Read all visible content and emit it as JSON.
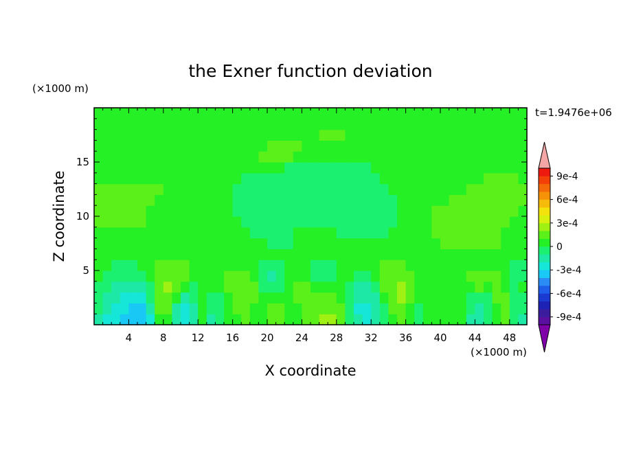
{
  "chart_data": {
    "type": "heatmap",
    "title": "the Exner function deviation",
    "xlabel": "X coordinate",
    "ylabel": "Z coordinate",
    "x_unit": "(×1000 m)",
    "y_unit": "(×1000 m)",
    "time_label": "t=1.9476e+06",
    "xlim": [
      0,
      50
    ],
    "ylim": [
      0,
      20
    ],
    "x_ticks": [
      4,
      8,
      12,
      16,
      20,
      24,
      28,
      32,
      36,
      40,
      44,
      48
    ],
    "y_ticks": [
      5,
      10,
      15
    ],
    "colorbar": {
      "levels": [
        -0.0011,
        -0.001,
        -0.0009,
        -0.0008,
        -0.0007,
        -0.0006,
        -0.0005,
        -0.0004,
        -0.0003,
        -0.0002,
        -0.0001,
        0,
        0.0001,
        0.0002,
        0.0003,
        0.0004,
        0.0005,
        0.0006,
        0.0007,
        0.0008,
        0.0009,
        0.001
      ],
      "tick_values": [
        -0.0009,
        -0.0006,
        -0.0003,
        0,
        0.0003,
        0.0006,
        0.0009
      ],
      "tick_labels": [
        "-9e-4",
        "-6e-4",
        "-3e-4",
        "0",
        "3e-4",
        "6e-4",
        "9e-4"
      ],
      "colors": [
        "#7f00a8",
        "#5a0fa0",
        "#3a1c9c",
        "#1e22b4",
        "#1a3ad2",
        "#1f5ee8",
        "#2a8cf4",
        "#19c8f4",
        "#16e6d8",
        "#1ee8a6",
        "#1cf070",
        "#25f025",
        "#5cf01a",
        "#a0f014",
        "#d8f00e",
        "#f4e20c",
        "#f5ba0a",
        "#f59208",
        "#f56a08",
        "#f24008",
        "#ee1a10",
        "#f4a6a6"
      ]
    },
    "grid": false,
    "legend": "colorbar-right",
    "field": {
      "nx": 50,
      "nz": 20,
      "x_centers": [
        0.5,
        1.5,
        2.5,
        3.5,
        4.5,
        5.5,
        6.5,
        7.5,
        8.5,
        9.5,
        10.5,
        11.5,
        12.5,
        13.5,
        14.5,
        15.5,
        16.5,
        17.5,
        18.5,
        19.5,
        20.5,
        21.5,
        22.5,
        23.5,
        24.5,
        25.5,
        26.5,
        27.5,
        28.5,
        29.5,
        30.5,
        31.5,
        32.5,
        33.5,
        34.5,
        35.5,
        36.5,
        37.5,
        38.5,
        39.5,
        40.5,
        41.5,
        42.5,
        43.5,
        44.5,
        45.5,
        46.5,
        47.5,
        48.5,
        49.5
      ],
      "z_centers": [
        0.5,
        1.5,
        2.5,
        3.5,
        4.5,
        5.5,
        6.5,
        7.5,
        8.5,
        9.5,
        10.5,
        11.5,
        12.5,
        13.5,
        14.5,
        15.5,
        16.5,
        17.5,
        18.5,
        19.5
      ],
      "values_by_z": [
        [
          -0.00015,
          -0.00025,
          -0.0003,
          -0.00035,
          -0.0004,
          -0.0004,
          -0.00025,
          5e-05,
          5e-05,
          -0.0002,
          -0.0003,
          -0.0002,
          5e-05,
          -0.00015,
          -0.0001,
          0,
          5e-05,
          0.0001,
          5e-05,
          5e-05,
          0.0001,
          0.0001,
          5e-05,
          5e-05,
          0.0001,
          0.00015,
          0.0002,
          0.0002,
          0.00015,
          -0.0001,
          -0.0002,
          -0.00025,
          -0.0002,
          -0.0001,
          5e-05,
          0.0001,
          5e-05,
          -5e-05,
          0,
          5e-05,
          5e-05,
          5e-05,
          5e-05,
          -0.00015,
          -0.0002,
          -0.0001,
          5e-05,
          0.0001,
          -0.0001,
          -0.00015
        ],
        [
          -0.0001,
          -0.0002,
          -0.00025,
          -0.0003,
          -0.00035,
          -0.00035,
          -0.0002,
          0.0001,
          0.0001,
          -0.00015,
          -0.00025,
          -0.00015,
          5e-05,
          -0.0001,
          -0.0001,
          0,
          0.0001,
          0.0001,
          5e-05,
          5e-05,
          0.0001,
          0.0001,
          5e-05,
          5e-05,
          0.0001,
          0.00015,
          0.00015,
          0.00015,
          0.0001,
          -0.0001,
          -0.00025,
          -0.00025,
          -0.0002,
          -5e-05,
          0.0001,
          0.00015,
          5e-05,
          -5e-05,
          0,
          5e-05,
          5e-05,
          5e-05,
          5e-05,
          -0.0001,
          -0.00015,
          -0.0001,
          5e-05,
          0.0001,
          -0.0001,
          -0.0001
        ],
        [
          -5e-05,
          -0.00015,
          -0.0002,
          -0.00025,
          -0.0003,
          -0.00025,
          -0.0001,
          0.00015,
          0.00015,
          5e-05,
          -0.00015,
          -0.0001,
          5e-05,
          -5e-05,
          -5e-05,
          5e-05,
          0.00015,
          0.00015,
          0.0001,
          5e-05,
          5e-05,
          5e-05,
          5e-05,
          0.0001,
          0.0001,
          0.0001,
          0.0001,
          0.0001,
          5e-05,
          -5e-05,
          -0.0002,
          -0.0002,
          -0.00015,
          5e-05,
          0.00015,
          0.0002,
          0.0001,
          0,
          0,
          5e-05,
          5e-05,
          5e-05,
          5e-05,
          -5e-05,
          -0.0001,
          -5e-05,
          0.0001,
          0.0001,
          -5e-05,
          -5e-05
        ],
        [
          -5e-05,
          -0.0001,
          -0.00015,
          -0.0002,
          -0.0002,
          -0.00015,
          -5e-05,
          0.00015,
          0.0002,
          0.00015,
          5e-05,
          -5e-05,
          5e-05,
          5e-05,
          5e-05,
          0.0001,
          0.00015,
          0.00015,
          0.0001,
          -5e-05,
          -0.0001,
          -5e-05,
          5e-05,
          0.0001,
          0.0001,
          5e-05,
          5e-05,
          5e-05,
          5e-05,
          -5e-05,
          -0.00015,
          -0.00015,
          -0.0001,
          0.0001,
          0.00015,
          0.0002,
          0.0001,
          0,
          0,
          5e-05,
          5e-05,
          5e-05,
          5e-05,
          5e-05,
          0.0001,
          5e-05,
          0.0001,
          5e-05,
          -5e-05,
          0
        ],
        [
          0,
          -5e-05,
          -0.0001,
          -0.0001,
          -0.0001,
          -5e-05,
          5e-05,
          0.0001,
          0.00015,
          0.00015,
          0.0001,
          5e-05,
          5e-05,
          5e-05,
          5e-05,
          0.0001,
          0.0001,
          0.0001,
          5e-05,
          -0.0001,
          -0.00015,
          -0.0001,
          0,
          5e-05,
          5e-05,
          -5e-05,
          -0.0001,
          -5e-05,
          5e-05,
          5e-05,
          -5e-05,
          -5e-05,
          0,
          0.0001,
          0.00015,
          0.00015,
          0.0001,
          0,
          0,
          5e-05,
          5e-05,
          5e-05,
          5e-05,
          0.0001,
          0.0001,
          0.0001,
          0.0001,
          5e-05,
          -0.0001,
          -5e-05
        ],
        [
          5e-05,
          0,
          -5e-05,
          -5e-05,
          -5e-05,
          0,
          5e-05,
          0.0001,
          0.0001,
          0.0001,
          0.0001,
          5e-05,
          5e-05,
          5e-05,
          5e-05,
          5e-05,
          5e-05,
          5e-05,
          0,
          -5e-05,
          -5e-05,
          -5e-05,
          0,
          5e-05,
          0,
          -0.0001,
          -0.0001,
          -5e-05,
          5e-05,
          5e-05,
          0,
          0,
          5e-05,
          0.0001,
          0.0001,
          0.0001,
          5e-05,
          0,
          0,
          5e-05,
          5e-05,
          5e-05,
          5e-05,
          5e-05,
          5e-05,
          5e-05,
          5e-05,
          0,
          -5e-05,
          -5e-05
        ],
        [
          5e-05,
          5e-05,
          5e-05,
          5e-05,
          5e-05,
          5e-05,
          5e-05,
          5e-05,
          5e-05,
          5e-05,
          5e-05,
          5e-05,
          5e-05,
          5e-05,
          5e-05,
          5e-05,
          5e-05,
          5e-05,
          5e-05,
          5e-05,
          5e-05,
          5e-05,
          5e-05,
          5e-05,
          5e-05,
          5e-05,
          5e-05,
          5e-05,
          5e-05,
          5e-05,
          5e-05,
          5e-05,
          5e-05,
          5e-05,
          5e-05,
          5e-05,
          5e-05,
          5e-05,
          5e-05,
          5e-05,
          5e-05,
          5e-05,
          5e-05,
          5e-05,
          5e-05,
          5e-05,
          5e-05,
          5e-05,
          5e-05,
          5e-05
        ],
        [
          5e-05,
          5e-05,
          5e-05,
          5e-05,
          5e-05,
          5e-05,
          5e-05,
          5e-05,
          5e-05,
          5e-05,
          5e-05,
          5e-05,
          5e-05,
          5e-05,
          5e-05,
          5e-05,
          5e-05,
          5e-05,
          0,
          0,
          -5e-05,
          -5e-05,
          -5e-05,
          5e-05,
          5e-05,
          5e-05,
          5e-05,
          0,
          0,
          0,
          0,
          0,
          0,
          0,
          0,
          0,
          0,
          0,
          5e-05,
          5e-05,
          0.0001,
          0.0001,
          0.0001,
          0.0001,
          0.0001,
          0.0001,
          0.0001,
          5e-05,
          5e-05,
          5e-05
        ],
        [
          5e-05,
          5e-05,
          5e-05,
          5e-05,
          5e-05,
          5e-05,
          5e-05,
          5e-05,
          5e-05,
          5e-05,
          5e-05,
          5e-05,
          5e-05,
          5e-05,
          5e-05,
          5e-05,
          5e-05,
          0,
          -5e-05,
          -5e-05,
          -5e-05,
          -5e-05,
          -5e-05,
          5e-05,
          5e-05,
          5e-05,
          5e-05,
          0,
          -5e-05,
          -5e-05,
          -5e-05,
          -5e-05,
          -5e-05,
          -5e-05,
          0,
          0,
          0,
          0,
          5e-05,
          0.0001,
          0.0001,
          0.0001,
          0.0001,
          0.0001,
          0.0001,
          0.0001,
          0.0001,
          5e-05,
          5e-05,
          5e-05
        ],
        [
          0.0001,
          0.0001,
          0.0001,
          0.0001,
          0.0001,
          0.0001,
          5e-05,
          5e-05,
          5e-05,
          5e-05,
          5e-05,
          5e-05,
          5e-05,
          5e-05,
          0,
          0,
          0,
          -5e-05,
          -5e-05,
          -5e-05,
          -5e-05,
          -5e-05,
          -5e-05,
          -5e-05,
          -5e-05,
          -5e-05,
          -5e-05,
          -5e-05,
          -5e-05,
          -5e-05,
          -5e-05,
          -5e-05,
          -5e-05,
          -5e-05,
          -5e-05,
          0,
          0,
          0,
          5e-05,
          0.0001,
          0.0001,
          0.0001,
          0.0001,
          0.0001,
          0.0001,
          0.0001,
          0.0001,
          0.0001,
          5e-05,
          5e-05
        ],
        [
          0.0001,
          0.0001,
          0.0001,
          0.0001,
          0.0001,
          0.0001,
          5e-05,
          5e-05,
          5e-05,
          5e-05,
          5e-05,
          5e-05,
          5e-05,
          5e-05,
          0,
          0,
          -5e-05,
          -5e-05,
          -5e-05,
          -5e-05,
          -5e-05,
          -5e-05,
          -5e-05,
          -5e-05,
          -5e-05,
          -5e-05,
          -5e-05,
          -5e-05,
          -5e-05,
          -5e-05,
          -5e-05,
          -5e-05,
          -5e-05,
          -5e-05,
          -5e-05,
          0,
          0,
          0,
          5e-05,
          0.0001,
          0.0001,
          0.0001,
          0.0001,
          0.0001,
          0.0001,
          0.0001,
          0.0001,
          0.0001,
          0.0001,
          5e-05
        ],
        [
          0.0001,
          0.0001,
          0.0001,
          0.0001,
          0.0001,
          0.0001,
          0.0001,
          5e-05,
          5e-05,
          5e-05,
          5e-05,
          5e-05,
          5e-05,
          5e-05,
          0,
          0,
          -5e-05,
          -5e-05,
          -5e-05,
          -5e-05,
          -5e-05,
          -5e-05,
          -5e-05,
          -5e-05,
          -5e-05,
          -5e-05,
          -5e-05,
          -5e-05,
          -5e-05,
          -5e-05,
          -5e-05,
          -5e-05,
          -5e-05,
          -5e-05,
          -5e-05,
          0,
          0,
          0,
          0,
          5e-05,
          5e-05,
          0.0001,
          0.0001,
          0.0001,
          0.0001,
          0.0001,
          0.0001,
          0.0001,
          0.0001,
          0.0001
        ],
        [
          0.0001,
          0.0001,
          0.0001,
          0.0001,
          0.0001,
          0.0001,
          0.0001,
          0.0001,
          5e-05,
          5e-05,
          5e-05,
          5e-05,
          5e-05,
          0,
          0,
          0,
          -5e-05,
          -5e-05,
          -5e-05,
          -5e-05,
          -5e-05,
          -5e-05,
          -5e-05,
          -5e-05,
          -5e-05,
          -5e-05,
          -5e-05,
          -5e-05,
          -5e-05,
          -5e-05,
          -5e-05,
          -5e-05,
          -5e-05,
          -5e-05,
          0,
          0,
          0,
          0,
          0,
          5e-05,
          5e-05,
          5e-05,
          5e-05,
          0.0001,
          0.0001,
          0.0001,
          0.0001,
          0.0001,
          0.0001,
          0.0001
        ],
        [
          5e-05,
          5e-05,
          5e-05,
          5e-05,
          5e-05,
          5e-05,
          5e-05,
          5e-05,
          5e-05,
          5e-05,
          5e-05,
          5e-05,
          5e-05,
          0,
          0,
          0,
          0,
          -5e-05,
          -5e-05,
          -5e-05,
          -5e-05,
          -5e-05,
          -5e-05,
          -5e-05,
          -5e-05,
          -5e-05,
          -5e-05,
          -5e-05,
          -5e-05,
          -5e-05,
          -5e-05,
          -5e-05,
          -5e-05,
          0,
          0,
          0,
          0,
          0,
          0,
          0,
          5e-05,
          5e-05,
          5e-05,
          5e-05,
          5e-05,
          0.0001,
          0.0001,
          0.0001,
          0.0001,
          5e-05
        ],
        [
          5e-05,
          5e-05,
          5e-05,
          5e-05,
          5e-05,
          5e-05,
          5e-05,
          5e-05,
          5e-05,
          5e-05,
          5e-05,
          5e-05,
          5e-05,
          5e-05,
          5e-05,
          5e-05,
          5e-05,
          5e-05,
          5e-05,
          5e-05,
          0,
          0,
          -5e-05,
          -5e-05,
          -5e-05,
          -5e-05,
          -5e-05,
          -5e-05,
          -5e-05,
          -5e-05,
          -5e-05,
          -5e-05,
          0,
          0,
          0,
          0,
          0,
          0,
          0,
          0,
          0,
          0,
          5e-05,
          5e-05,
          5e-05,
          5e-05,
          5e-05,
          5e-05,
          5e-05,
          5e-05
        ],
        [
          0,
          0,
          0,
          0,
          5e-05,
          5e-05,
          5e-05,
          5e-05,
          5e-05,
          5e-05,
          5e-05,
          5e-05,
          5e-05,
          5e-05,
          5e-05,
          5e-05,
          5e-05,
          5e-05,
          5e-05,
          0.0001,
          0.0001,
          0.0001,
          0.0001,
          5e-05,
          5e-05,
          5e-05,
          0,
          0,
          0,
          0,
          0,
          0,
          0,
          0,
          0,
          0,
          0,
          0,
          0,
          0,
          0,
          0,
          0,
          0,
          0,
          0,
          0,
          0,
          0,
          0
        ],
        [
          0,
          0,
          0,
          0,
          0,
          0,
          0,
          0,
          0,
          5e-05,
          5e-05,
          5e-05,
          5e-05,
          5e-05,
          5e-05,
          5e-05,
          5e-05,
          5e-05,
          5e-05,
          5e-05,
          0.0001,
          0.0001,
          0.0001,
          0.0001,
          5e-05,
          5e-05,
          5e-05,
          5e-05,
          5e-05,
          5e-05,
          5e-05,
          5e-05,
          5e-05,
          5e-05,
          5e-05,
          0,
          0,
          0,
          0,
          0,
          0,
          0,
          0,
          0,
          0,
          0,
          0,
          0,
          0,
          0
        ],
        [
          0,
          0,
          0,
          0,
          0,
          0,
          0,
          0,
          0,
          0,
          0,
          0,
          0,
          5e-05,
          5e-05,
          5e-05,
          5e-05,
          5e-05,
          5e-05,
          5e-05,
          5e-05,
          5e-05,
          5e-05,
          5e-05,
          5e-05,
          5e-05,
          0.0001,
          0.0001,
          0.0001,
          5e-05,
          5e-05,
          5e-05,
          5e-05,
          5e-05,
          5e-05,
          5e-05,
          5e-05,
          5e-05,
          5e-05,
          0,
          0,
          0,
          0,
          0,
          0,
          0,
          0,
          0,
          0,
          0
        ],
        [
          0,
          0,
          0,
          0,
          0,
          0,
          0,
          0,
          0,
          0,
          0,
          0,
          0,
          5e-05,
          5e-05,
          5e-05,
          5e-05,
          5e-05,
          5e-05,
          5e-05,
          5e-05,
          5e-05,
          5e-05,
          5e-05,
          5e-05,
          5e-05,
          5e-05,
          5e-05,
          5e-05,
          5e-05,
          5e-05,
          5e-05,
          5e-05,
          5e-05,
          5e-05,
          5e-05,
          5e-05,
          5e-05,
          5e-05,
          5e-05,
          5e-05,
          0,
          0,
          0,
          0,
          0,
          0,
          0,
          0,
          0
        ],
        [
          0,
          0,
          0,
          0,
          0,
          0,
          0,
          0,
          0,
          0,
          0,
          0,
          0,
          5e-05,
          5e-05,
          5e-05,
          5e-05,
          5e-05,
          5e-05,
          5e-05,
          5e-05,
          5e-05,
          5e-05,
          5e-05,
          5e-05,
          5e-05,
          5e-05,
          5e-05,
          5e-05,
          5e-05,
          5e-05,
          5e-05,
          5e-05,
          5e-05,
          5e-05,
          5e-05,
          5e-05,
          5e-05,
          5e-05,
          5e-05,
          5e-05,
          5e-05,
          0,
          0,
          0,
          0,
          0,
          0,
          0,
          0
        ]
      ]
    }
  }
}
